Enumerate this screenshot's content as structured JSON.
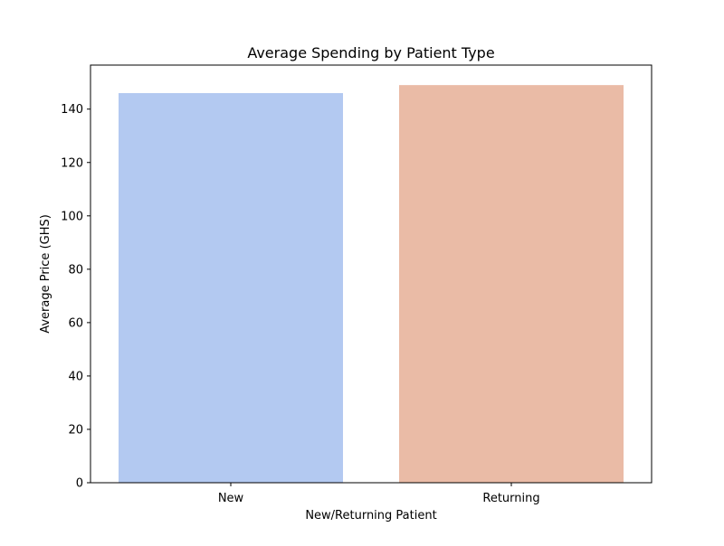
{
  "chart_data": {
    "type": "bar",
    "title": "Average Spending by Patient Type",
    "xlabel": "New/Returning Patient",
    "ylabel": "Average Price (GHS)",
    "categories": [
      "New",
      "Returning"
    ],
    "values": [
      146,
      149
    ],
    "colors": [
      "#b3c9f1",
      "#eabba6"
    ],
    "ylim": [
      0,
      156.5
    ],
    "yticks": [
      0,
      20,
      40,
      60,
      80,
      100,
      120,
      140
    ],
    "grid": false,
    "legend": "none"
  }
}
